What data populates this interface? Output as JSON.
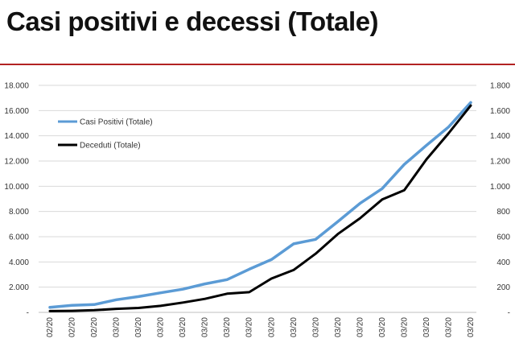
{
  "slide": {
    "title": "Casi positivi e decessi (Totale)"
  },
  "colors": {
    "title_rule": "#b22222",
    "casi_positivi": "#5b9bd5",
    "deceduti": "#000000"
  },
  "chart_data": {
    "type": "line",
    "title": "",
    "xlabel": "",
    "ylabel": "",
    "categories": [
      "02/20",
      "02/20",
      "02/20",
      "03/20",
      "03/20",
      "03/20",
      "03/20",
      "03/20",
      "03/20",
      "03/20",
      "03/20",
      "03/20",
      "03/20",
      "03/20",
      "03/20",
      "03/20",
      "03/20",
      "03/20",
      "03/20",
      "03/20"
    ],
    "y_left": {
      "lim": [
        0,
        18000
      ],
      "ticks": [
        "-",
        "2.000",
        "4.000",
        "6.000",
        "8.000",
        "10.000",
        "12.000",
        "14.000",
        "16.000",
        "18.000"
      ]
    },
    "y_right": {
      "lim": [
        0,
        1800
      ],
      "ticks": [
        "-",
        "200",
        "400",
        "600",
        "800",
        "1.000",
        "1.200",
        "1.400",
        "1.600",
        "1.800"
      ]
    },
    "grid": true,
    "legend_position": "top-left",
    "series": [
      {
        "name": "Casi Positivi (Totale)",
        "axis": "left",
        "color": "#5b9bd5",
        "values": [
          400,
          560,
          620,
          1000,
          1250,
          1550,
          1840,
          2260,
          2600,
          3420,
          4190,
          5430,
          5790,
          7200,
          8640,
          9810,
          11730,
          13240,
          14700,
          16640
        ]
      },
      {
        "name": "Deceduti (Totale)",
        "axis": "right",
        "color": "#000000",
        "values": [
          10,
          12,
          17,
          28,
          35,
          52,
          78,
          107,
          148,
          160,
          268,
          336,
          465,
          621,
          746,
          895,
          968,
          1213,
          1420,
          1640
        ]
      }
    ]
  }
}
